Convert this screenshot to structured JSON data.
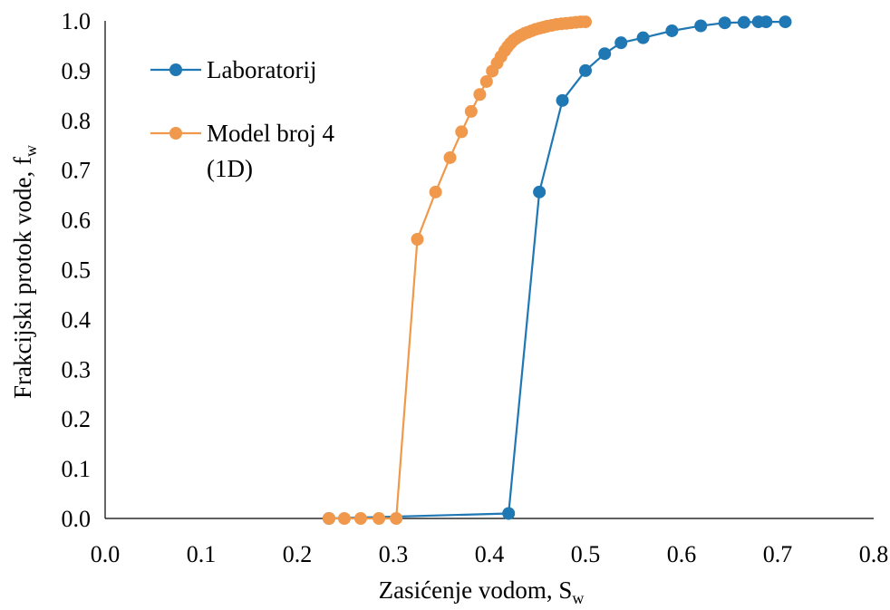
{
  "chart_data": {
    "type": "scatter",
    "xlabel": "Zasićenje vodom, S",
    "xlabel_sub": "w",
    "ylabel": "Frakcijski protok vode, f",
    "ylabel_sub": "w",
    "xlim": [
      0.0,
      0.8
    ],
    "ylim": [
      0.0,
      1.0
    ],
    "x_ticks": [
      "0.0",
      "0.1",
      "0.2",
      "0.3",
      "0.4",
      "0.5",
      "0.6",
      "0.7",
      "0.8"
    ],
    "y_ticks": [
      "0.0",
      "0.1",
      "0.2",
      "0.3",
      "0.4",
      "0.5",
      "0.6",
      "0.7",
      "0.8",
      "0.9",
      "1.0"
    ],
    "grid": false,
    "legend_position": "top-left",
    "series": [
      {
        "name": "Laboratorij",
        "color": "#1f77b4",
        "points": [
          [
            0.233,
            0.0
          ],
          [
            0.42,
            0.01
          ],
          [
            0.452,
            0.656
          ],
          [
            0.476,
            0.84
          ],
          [
            0.5,
            0.9
          ],
          [
            0.52,
            0.934
          ],
          [
            0.537,
            0.956
          ],
          [
            0.56,
            0.966
          ],
          [
            0.59,
            0.98
          ],
          [
            0.62,
            0.99
          ],
          [
            0.645,
            0.996
          ],
          [
            0.665,
            0.997
          ],
          [
            0.68,
            0.998
          ],
          [
            0.688,
            0.998
          ],
          [
            0.708,
            0.998
          ]
        ]
      },
      {
        "name": "Model broj 4\n(1D)",
        "name_lines": [
          "Model broj 4",
          "(1D)"
        ],
        "color": "#f0984b",
        "points": [
          [
            0.233,
            0.0
          ],
          [
            0.249,
            0.0
          ],
          [
            0.266,
            0.0
          ],
          [
            0.285,
            0.0
          ],
          [
            0.303,
            0.0
          ],
          [
            0.325,
            0.561
          ],
          [
            0.344,
            0.656
          ],
          [
            0.359,
            0.725
          ],
          [
            0.371,
            0.777
          ],
          [
            0.381,
            0.818
          ],
          [
            0.39,
            0.852
          ],
          [
            0.397,
            0.878
          ],
          [
            0.403,
            0.899
          ],
          [
            0.408,
            0.915
          ],
          [
            0.412,
            0.928
          ],
          [
            0.416,
            0.94
          ],
          [
            0.419,
            0.948
          ],
          [
            0.422,
            0.955
          ],
          [
            0.425,
            0.961
          ],
          [
            0.428,
            0.965
          ],
          [
            0.431,
            0.969
          ],
          [
            0.434,
            0.972
          ],
          [
            0.437,
            0.975
          ],
          [
            0.44,
            0.977
          ],
          [
            0.444,
            0.98
          ],
          [
            0.448,
            0.983
          ],
          [
            0.452,
            0.985
          ],
          [
            0.456,
            0.987
          ],
          [
            0.46,
            0.989
          ],
          [
            0.465,
            0.991
          ],
          [
            0.47,
            0.993
          ],
          [
            0.475,
            0.994
          ],
          [
            0.48,
            0.995
          ],
          [
            0.485,
            0.996
          ],
          [
            0.49,
            0.997
          ],
          [
            0.495,
            0.998
          ],
          [
            0.5,
            0.998
          ]
        ]
      }
    ]
  }
}
